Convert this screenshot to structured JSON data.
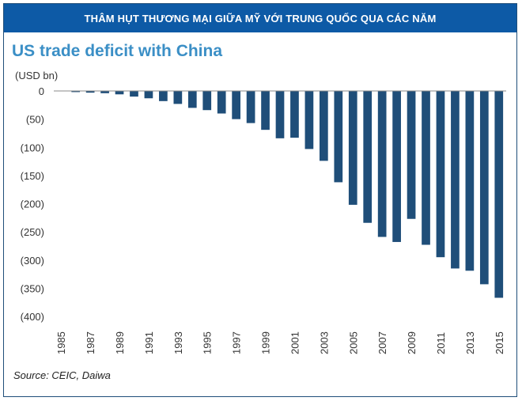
{
  "header": {
    "banner_text": "THÂM HỤT THƯƠNG MẠI GIỮA MỸ VỚI TRUNG QUỐC QUA CÁC NĂM"
  },
  "footer": {
    "source": "Source: CEIC, Daiwa"
  },
  "colors": {
    "banner": "#0d5aa6",
    "title": "#3b8fc6",
    "bar": "#1f4e79"
  },
  "chart_data": {
    "type": "bar",
    "title": "US trade deficit with China",
    "ylabel": "(USD bn)",
    "xlabel": "",
    "ylim": [
      -400,
      0
    ],
    "yticks": [
      0,
      -50,
      -100,
      -150,
      -200,
      -250,
      -300,
      -350,
      -400
    ],
    "ytick_labels": [
      "0",
      "(50)",
      "(100)",
      "(150)",
      "(200)",
      "(250)",
      "(300)",
      "(350)",
      "(400)"
    ],
    "categories": [
      "1985",
      "1986",
      "1987",
      "1988",
      "1989",
      "1990",
      "1991",
      "1992",
      "1993",
      "1994",
      "1995",
      "1996",
      "1997",
      "1998",
      "1999",
      "2000",
      "2001",
      "2002",
      "2003",
      "2004",
      "2005",
      "2006",
      "2007",
      "2008",
      "2009",
      "2010",
      "2011",
      "2012",
      "2013",
      "2014",
      "2015"
    ],
    "xtick_labels": [
      "1985",
      "1987",
      "1989",
      "1991",
      "1993",
      "1995",
      "1997",
      "1999",
      "2001",
      "2003",
      "2005",
      "2007",
      "2009",
      "2011",
      "2013",
      "2015"
    ],
    "values": [
      0,
      -2,
      -3,
      -4,
      -6,
      -10,
      -13,
      -18,
      -23,
      -30,
      -34,
      -40,
      -50,
      -57,
      -69,
      -84,
      -83,
      -103,
      -124,
      -162,
      -202,
      -234,
      -259,
      -268,
      -227,
      -273,
      -295,
      -315,
      -319,
      -343,
      -367
    ],
    "grid": false
  }
}
